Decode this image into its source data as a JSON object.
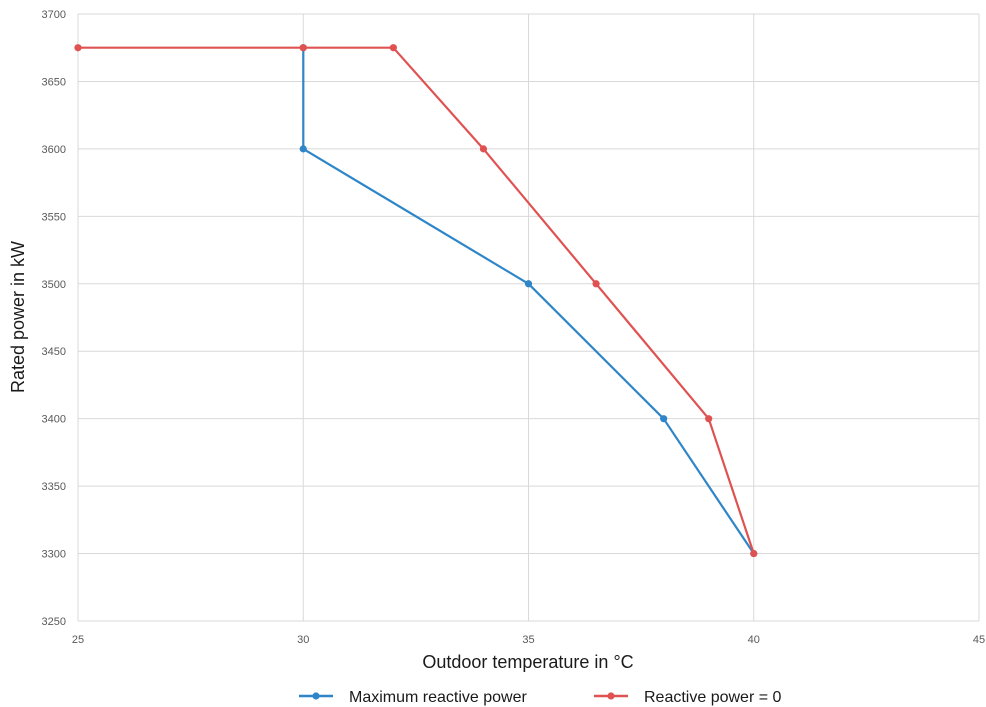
{
  "chart_data": {
    "type": "line",
    "title": "",
    "xlabel": "Outdoor temperature in °C",
    "ylabel": "Rated power in kW",
    "xlim": [
      25,
      45
    ],
    "ylim": [
      3250,
      3700
    ],
    "xticks": [
      25,
      30,
      35,
      40,
      45
    ],
    "yticks": [
      3250,
      3300,
      3350,
      3400,
      3450,
      3500,
      3550,
      3600,
      3650,
      3700
    ],
    "grid": true,
    "legend_position": "bottom",
    "series": [
      {
        "name": "Maximum reactive power",
        "color": "#2e86c8",
        "points": [
          [
            30,
            3675
          ],
          [
            30,
            3600
          ],
          [
            35,
            3500
          ],
          [
            38,
            3400
          ],
          [
            40,
            3300
          ]
        ]
      },
      {
        "name": "Reactive power = 0",
        "color": "#e05252",
        "points": [
          [
            25,
            3675
          ],
          [
            30,
            3675
          ],
          [
            32,
            3675
          ],
          [
            34,
            3600
          ],
          [
            36.5,
            3500
          ],
          [
            39,
            3400
          ],
          [
            40,
            3300
          ]
        ]
      }
    ]
  }
}
